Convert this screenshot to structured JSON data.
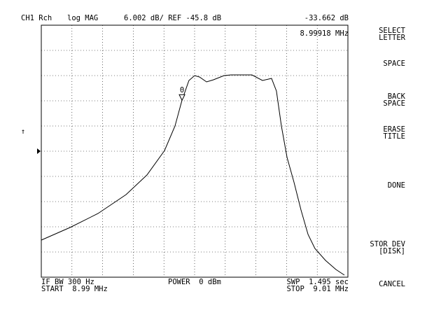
{
  "header": {
    "channel": "CH1 Rch",
    "format": "log MAG",
    "scale": "6.002 dB/ REF -45.8 dB"
  },
  "chart_data": {
    "type": "line",
    "x": [
      8.99,
      8.99187,
      8.9937,
      8.99553,
      8.99689,
      8.99804,
      8.99872,
      8.99918,
      8.99963,
      9.0,
      9.00032,
      9.00078,
      9.00123,
      9.00192,
      9.00237,
      9.00374,
      9.00443,
      9.00502,
      9.00534,
      9.00566,
      9.00603,
      9.00648,
      9.00694,
      9.0074,
      9.00785,
      9.00854,
      9.00922,
      9.00977
    ],
    "values": [
      -66.97,
      -63.97,
      -60.64,
      -56.14,
      -51.47,
      -45.63,
      -39.8,
      -33.66,
      -28.96,
      -27.79,
      -28.13,
      -29.29,
      -28.79,
      -27.79,
      -27.63,
      -27.63,
      -28.96,
      -28.46,
      -31.46,
      -39.8,
      -47.3,
      -53.14,
      -59.8,
      -65.64,
      -68.97,
      -71.81,
      -73.98,
      -75.31
    ],
    "color": "#000000",
    "xlim": [
      8.99,
      9.01
    ],
    "ylim": [
      -75.81,
      -15.79
    ],
    "marker": {
      "label": "0",
      "x": 8.99918,
      "y": -33.662,
      "x_label": "8.99918 MHz",
      "y_label": "-33.662 dB"
    }
  },
  "footer": {
    "if_bw": "IF BW 300 Hz",
    "start": "START  8.99 MHz",
    "power": "POWER  0 dBm",
    "sweep": "SWP  1.495 sec",
    "stop": "STOP  9.01 MHz"
  },
  "softkeys": [
    [
      "SELECT",
      "LETTER"
    ],
    [
      "SPACE"
    ],
    [
      "BACK",
      "SPACE"
    ],
    [
      "ERASE",
      "TITLE"
    ],
    [
      "DONE"
    ],
    [
      "STOR DEV",
      "[DISK]"
    ],
    [
      "CANCEL"
    ]
  ]
}
